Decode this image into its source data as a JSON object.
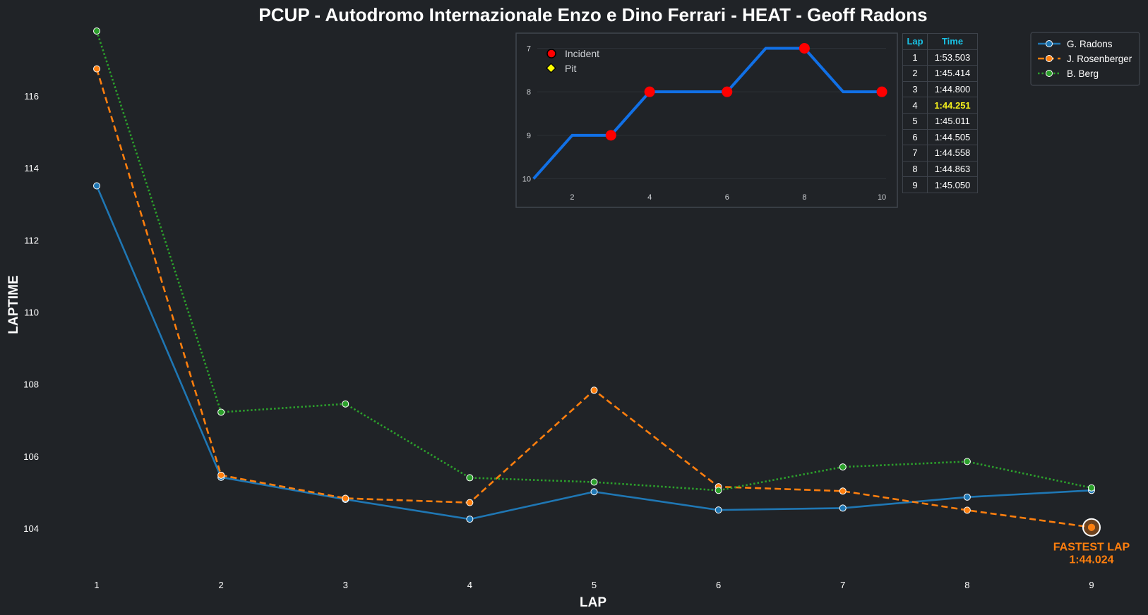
{
  "colors": {
    "background": "#202327",
    "grid": "#2c3036",
    "inset_border": "#41464e",
    "accent_blue": "#1f77b4",
    "accent_orange": "#ff7f0e",
    "accent_green": "#2ca02c",
    "position_line": "#1170e6",
    "incident": "#ff0000",
    "pit": "#ffff00",
    "table_header": "#19c3e6",
    "fastest_table": "#f5f01c"
  },
  "chart_data": [
    {
      "type": "line",
      "title": "PCUP - Autodromo Internazionale Enzo e Dino Ferrari - HEAT - Geoff Radons",
      "xlabel": "LAP",
      "ylabel": "LAPTIME",
      "x": [
        1,
        2,
        3,
        4,
        5,
        6,
        7,
        8,
        9
      ],
      "xticks": [
        "1",
        "2",
        "3",
        "4",
        "5",
        "6",
        "7",
        "8",
        "9"
      ],
      "yticks": [
        "104",
        "106",
        "108",
        "110",
        "112",
        "114",
        "116"
      ],
      "ylim": [
        103,
        117.8
      ],
      "grid": false,
      "legend_position": "top-right",
      "series": [
        {
          "name": "G. Radons",
          "color": "#1f77b4",
          "dash": "solid",
          "values": [
            113.503,
            105.414,
            104.8,
            104.251,
            105.011,
            104.505,
            104.558,
            104.863,
            105.05
          ]
        },
        {
          "name": "J. Rosenberger",
          "color": "#ff7f0e",
          "dash": "dashed",
          "values": [
            116.75,
            105.47,
            104.83,
            104.71,
            107.83,
            105.15,
            105.03,
            104.5,
            104.024
          ]
        },
        {
          "name": "B. Berg",
          "color": "#2ca02c",
          "dash": "dotted",
          "values": [
            117.8,
            107.22,
            107.45,
            105.4,
            105.28,
            105.05,
            105.7,
            105.85,
            105.12
          ]
        }
      ],
      "annotation": {
        "label": "FASTEST LAP",
        "value": "1:44.024",
        "x": 9,
        "y": 104.024,
        "series": "J. Rosenberger"
      }
    },
    {
      "type": "line",
      "title": "",
      "xlabel": "",
      "ylabel": "",
      "x": [
        1,
        2,
        3,
        4,
        5,
        6,
        7,
        8,
        9,
        10
      ],
      "positions": [
        10,
        9,
        9,
        8,
        8,
        8,
        7,
        7,
        8,
        8
      ],
      "xticks": [
        "2",
        "4",
        "6",
        "8",
        "10"
      ],
      "yticks": [
        "7",
        "8",
        "9",
        "10"
      ],
      "ylim": [
        10.3,
        6.7
      ],
      "xlim": [
        0.55,
        10.4
      ],
      "inverted_y": true,
      "incidents": [
        3,
        4,
        6,
        8,
        10
      ],
      "pits": [],
      "legend": [
        "Incident",
        "Pit"
      ],
      "legend_position": "top-left"
    }
  ],
  "lap_table": {
    "headers": [
      "Lap",
      "Time"
    ],
    "rows": [
      [
        "1",
        "1:53.503"
      ],
      [
        "2",
        "1:45.414"
      ],
      [
        "3",
        "1:44.800"
      ],
      [
        "4",
        "1:44.251"
      ],
      [
        "5",
        "1:45.011"
      ],
      [
        "6",
        "1:44.505"
      ],
      [
        "7",
        "1:44.558"
      ],
      [
        "8",
        "1:44.863"
      ],
      [
        "9",
        "1:45.050"
      ]
    ],
    "best_index": 3
  }
}
